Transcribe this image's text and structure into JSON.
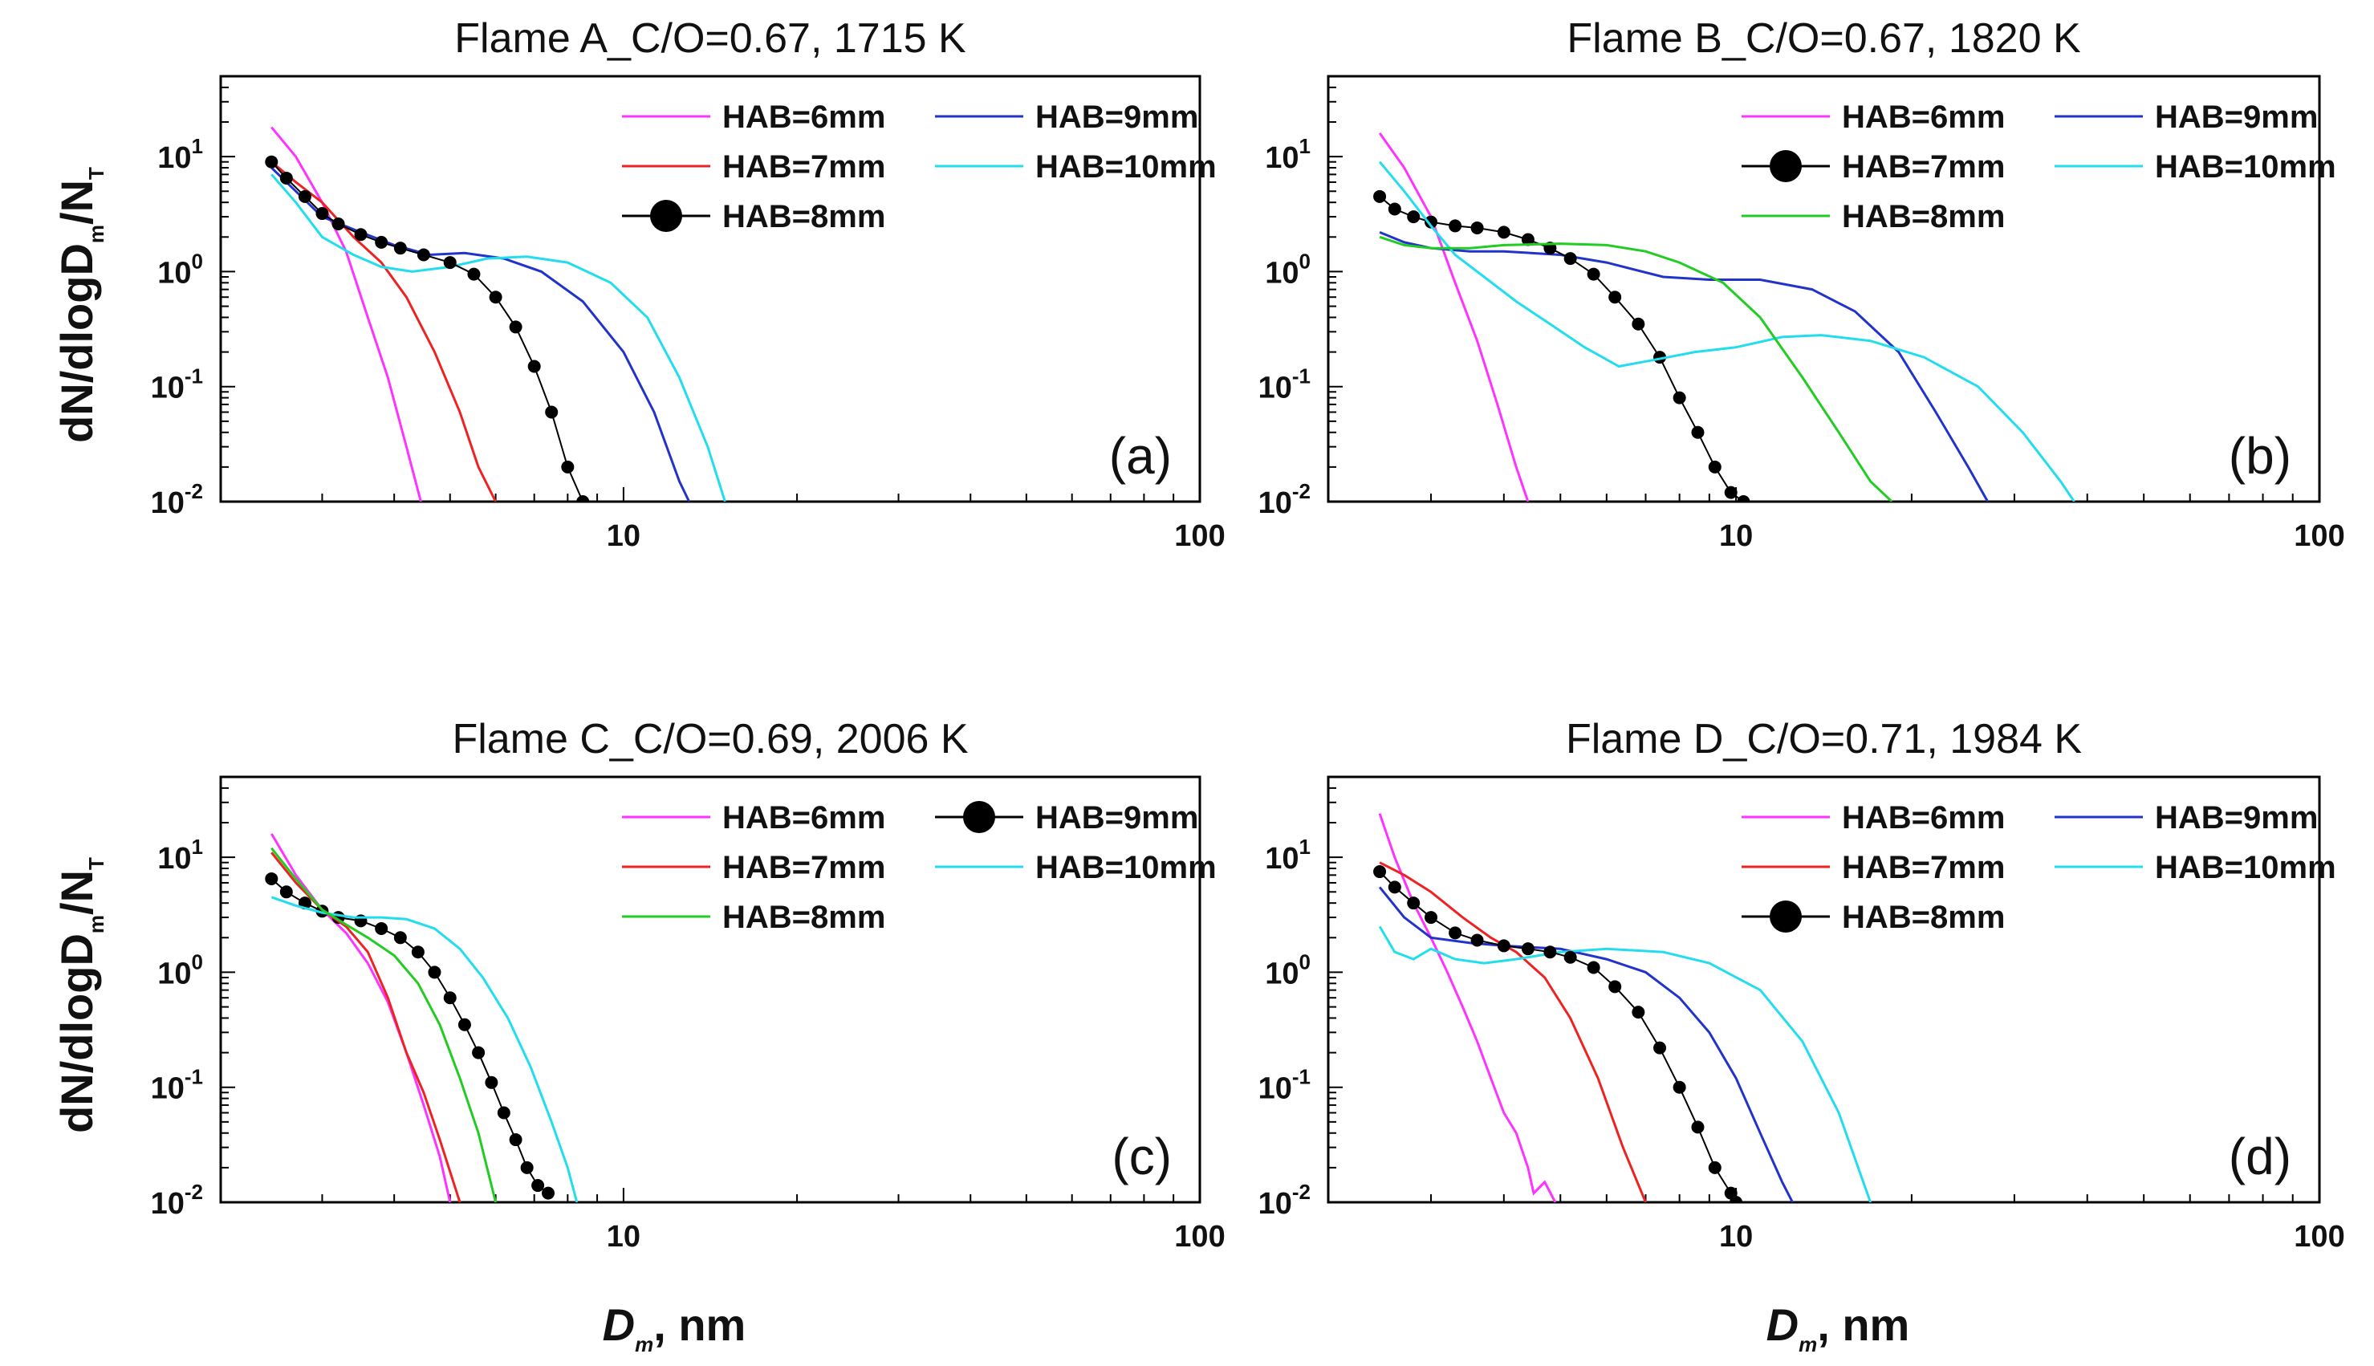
{
  "figure": {
    "y_axis_label": {
      "prefix": "dN/dlogD",
      "sub": "m",
      "mid": "/N",
      "sub2": "T"
    },
    "x_axis_label": {
      "main": "D",
      "sub": "m",
      "suffix": ", nm"
    }
  },
  "chart_data": [
    {
      "type": "line",
      "panel": "(a)",
      "title": "Flame A_C/O=0.67, 1715 K",
      "xlabel": "Dm, nm",
      "ylabel": "dN/dlogDm/NT",
      "xscale": "log",
      "yscale": "log",
      "xlim": [
        2,
        100
      ],
      "ylim": [
        0.01,
        50
      ],
      "x_ticks": [
        "10",
        "100"
      ],
      "y_ticks": [
        {
          "base": "10",
          "exp": "1"
        },
        {
          "base": "10",
          "exp": "0"
        },
        {
          "base": "10",
          "exp": "-1"
        },
        {
          "base": "10",
          "exp": "-2"
        }
      ],
      "legend": {
        "columns": 2,
        "placement": "top-right"
      },
      "series": [
        {
          "name": "HAB=6mm",
          "color": "#ff33ff",
          "style": "line",
          "x": [
            2.45,
            2.7,
            3.0,
            3.3,
            3.6,
            3.9,
            4.2,
            4.45
          ],
          "y": [
            18,
            10,
            4,
            1.5,
            0.4,
            0.12,
            0.03,
            0.01
          ]
        },
        {
          "name": "HAB=9mm",
          "color": "#2233cc",
          "style": "line",
          "x": [
            2.45,
            2.7,
            3.0,
            3.5,
            4.0,
            4.6,
            5.3,
            6.2,
            7.2,
            8.5,
            10,
            11.3,
            12.5,
            13.0
          ],
          "y": [
            8,
            5,
            3,
            2.2,
            1.7,
            1.4,
            1.45,
            1.3,
            1.0,
            0.55,
            0.2,
            0.06,
            0.015,
            0.01
          ]
        },
        {
          "name": "HAB=7mm",
          "color": "#ee2222",
          "style": "line",
          "x": [
            2.45,
            2.7,
            3.0,
            3.4,
            3.8,
            4.2,
            4.7,
            5.2,
            5.6,
            6.0
          ],
          "y": [
            9,
            6,
            4,
            2,
            1.2,
            0.6,
            0.2,
            0.06,
            0.02,
            0.01
          ]
        },
        {
          "name": "HAB=10mm",
          "color": "#22ddee",
          "style": "line",
          "x": [
            2.45,
            2.7,
            3.0,
            3.4,
            3.8,
            4.3,
            5.0,
            5.8,
            6.8,
            8.0,
            9.5,
            11.0,
            12.5,
            14.0,
            15.0
          ],
          "y": [
            7,
            4,
            2,
            1.4,
            1.1,
            1.0,
            1.1,
            1.3,
            1.35,
            1.2,
            0.8,
            0.4,
            0.12,
            0.03,
            0.01
          ]
        },
        {
          "name": "HAB=8mm",
          "color": "#000000",
          "style": "dots",
          "x": [
            2.45,
            2.6,
            2.8,
            3.0,
            3.2,
            3.5,
            3.8,
            4.1,
            4.5,
            5.0,
            5.5,
            6.0,
            6.5,
            7.0,
            7.5,
            8.0,
            8.5
          ],
          "y": [
            9,
            6.5,
            4.5,
            3.2,
            2.6,
            2.1,
            1.8,
            1.6,
            1.4,
            1.2,
            0.95,
            0.6,
            0.33,
            0.15,
            0.06,
            0.02,
            0.01
          ]
        }
      ]
    },
    {
      "type": "line",
      "panel": "(b)",
      "title": "Flame B_C/O=0.67, 1820 K",
      "xlabel": "Dm, nm",
      "ylabel": "dN/dlogDm/NT",
      "xscale": "log",
      "yscale": "log",
      "xlim": [
        2,
        100
      ],
      "ylim": [
        0.01,
        50
      ],
      "x_ticks": [
        "10",
        "100"
      ],
      "y_ticks": [
        {
          "base": "10",
          "exp": "1"
        },
        {
          "base": "10",
          "exp": "0"
        },
        {
          "base": "10",
          "exp": "-1"
        },
        {
          "base": "10",
          "exp": "-2"
        }
      ],
      "legend": {
        "columns": 2,
        "placement": "top-right"
      },
      "series": [
        {
          "name": "HAB=6mm",
          "color": "#ff33ff",
          "style": "line",
          "x": [
            2.45,
            2.7,
            3.0,
            3.3,
            3.6,
            3.9,
            4.2,
            4.4
          ],
          "y": [
            16,
            8,
            3,
            0.8,
            0.25,
            0.07,
            0.02,
            0.01
          ]
        },
        {
          "name": "HAB=9mm",
          "color": "#2233cc",
          "style": "line",
          "x": [
            2.45,
            2.7,
            3.0,
            3.5,
            4.0,
            5.0,
            6.0,
            7.5,
            9.0,
            11.0,
            13.5,
            16.0,
            19.0,
            22.0,
            25.0,
            27.0
          ],
          "y": [
            2.2,
            1.8,
            1.6,
            1.5,
            1.5,
            1.4,
            1.2,
            0.9,
            0.85,
            0.85,
            0.7,
            0.45,
            0.2,
            0.06,
            0.02,
            0.01
          ]
        },
        {
          "name": "HAB=7mm",
          "color": "#000000",
          "style": "dots",
          "x": [
            2.45,
            2.6,
            2.8,
            3.0,
            3.3,
            3.6,
            4.0,
            4.4,
            4.8,
            5.2,
            5.7,
            6.2,
            6.8,
            7.4,
            8.0,
            8.6,
            9.2,
            9.8,
            10.3
          ],
          "y": [
            4.5,
            3.5,
            3.0,
            2.7,
            2.5,
            2.4,
            2.2,
            1.9,
            1.6,
            1.3,
            0.95,
            0.6,
            0.35,
            0.18,
            0.08,
            0.04,
            0.02,
            0.012,
            0.01
          ]
        },
        {
          "name": "HAB=10mm",
          "color": "#22ddee",
          "style": "line",
          "x": [
            2.45,
            2.7,
            3.0,
            3.3,
            3.7,
            4.2,
            4.8,
            5.5,
            6.3,
            7.2,
            8.5,
            10.0,
            12.0,
            14.0,
            17.0,
            21.0,
            26.0,
            31.0,
            36.0,
            38.0
          ],
          "y": [
            9,
            5,
            2.5,
            1.4,
            0.9,
            0.55,
            0.35,
            0.22,
            0.15,
            0.17,
            0.2,
            0.22,
            0.27,
            0.28,
            0.25,
            0.18,
            0.1,
            0.04,
            0.015,
            0.01
          ]
        },
        {
          "name": "HAB=8mm",
          "color": "#22cc22",
          "style": "line",
          "x": [
            2.45,
            2.7,
            3.0,
            3.5,
            4.0,
            5.0,
            6.0,
            7.0,
            8.0,
            9.5,
            11.0,
            13.0,
            15.0,
            17.0,
            18.5
          ],
          "y": [
            2.0,
            1.7,
            1.6,
            1.6,
            1.7,
            1.75,
            1.7,
            1.5,
            1.2,
            0.8,
            0.4,
            0.12,
            0.04,
            0.015,
            0.01
          ]
        }
      ]
    },
    {
      "type": "line",
      "panel": "(c)",
      "title": "Flame C_C/O=0.69, 2006 K",
      "xlabel": "Dm, nm",
      "ylabel": "dN/dlogDm/NT",
      "xscale": "log",
      "yscale": "log",
      "xlim": [
        2,
        100
      ],
      "ylim": [
        0.01,
        50
      ],
      "x_ticks": [
        "10",
        "100"
      ],
      "y_ticks": [
        {
          "base": "10",
          "exp": "1"
        },
        {
          "base": "10",
          "exp": "0"
        },
        {
          "base": "10",
          "exp": "-1"
        },
        {
          "base": "10",
          "exp": "-2"
        }
      ],
      "legend": {
        "columns": 2,
        "placement": "top-right"
      },
      "series": [
        {
          "name": "HAB=6mm",
          "color": "#ff33ff",
          "style": "line",
          "x": [
            2.45,
            2.7,
            3.0,
            3.3,
            3.6,
            3.9,
            4.2,
            4.5,
            4.8,
            5.0
          ],
          "y": [
            16,
            7,
            3.5,
            2.2,
            1.2,
            0.55,
            0.2,
            0.07,
            0.025,
            0.01
          ]
        },
        {
          "name": "HAB=9mm",
          "color": "#000000",
          "style": "dots",
          "x": [
            2.45,
            2.6,
            2.8,
            3.0,
            3.2,
            3.5,
            3.8,
            4.1,
            4.4,
            4.7,
            5.0,
            5.3,
            5.6,
            5.9,
            6.2,
            6.5,
            6.8,
            7.1,
            7.4
          ],
          "y": [
            6.5,
            5,
            4,
            3.4,
            3.0,
            2.8,
            2.4,
            2.0,
            1.5,
            1.0,
            0.6,
            0.35,
            0.2,
            0.11,
            0.06,
            0.035,
            0.02,
            0.014,
            0.012
          ]
        },
        {
          "name": "HAB=7mm",
          "color": "#ee2222",
          "style": "line",
          "x": [
            2.45,
            2.7,
            3.0,
            3.3,
            3.6,
            3.9,
            4.2,
            4.5,
            4.8,
            5.2
          ],
          "y": [
            11,
            6,
            3.5,
            2.5,
            1.5,
            0.6,
            0.2,
            0.09,
            0.035,
            0.01
          ]
        },
        {
          "name": "HAB=10mm",
          "color": "#22ddee",
          "style": "line",
          "x": [
            2.45,
            2.7,
            3.0,
            3.4,
            3.8,
            4.2,
            4.7,
            5.2,
            5.7,
            6.3,
            6.9,
            7.5,
            8.0,
            8.3
          ],
          "y": [
            4.5,
            3.8,
            3.3,
            3.0,
            3.0,
            2.9,
            2.4,
            1.6,
            0.9,
            0.4,
            0.15,
            0.05,
            0.02,
            0.01
          ]
        },
        {
          "name": "HAB=8mm",
          "color": "#22cc22",
          "style": "line",
          "x": [
            2.45,
            2.7,
            3.0,
            3.3,
            3.6,
            4.0,
            4.4,
            4.8,
            5.2,
            5.6,
            6.0
          ],
          "y": [
            12,
            6.5,
            3.5,
            2.6,
            2.0,
            1.4,
            0.8,
            0.35,
            0.12,
            0.04,
            0.01
          ]
        }
      ]
    },
    {
      "type": "line",
      "panel": "(d)",
      "title": "Flame D_C/O=0.71, 1984 K",
      "xlabel": "Dm, nm",
      "ylabel": "dN/dlogDm/NT",
      "xscale": "log",
      "yscale": "log",
      "xlim": [
        2,
        100
      ],
      "ylim": [
        0.01,
        50
      ],
      "x_ticks": [
        "10",
        "100"
      ],
      "y_ticks": [
        {
          "base": "10",
          "exp": "1"
        },
        {
          "base": "10",
          "exp": "0"
        },
        {
          "base": "10",
          "exp": "-1"
        },
        {
          "base": "10",
          "exp": "-2"
        }
      ],
      "legend": {
        "columns": 2,
        "placement": "top-right"
      },
      "series": [
        {
          "name": "HAB=6mm",
          "color": "#ff33ff",
          "style": "line",
          "x": [
            2.45,
            2.6,
            2.8,
            3.0,
            3.2,
            3.4,
            3.6,
            3.8,
            4.0,
            4.2,
            4.4,
            4.5,
            4.7,
            4.9
          ],
          "y": [
            24,
            10,
            4,
            2,
            1.0,
            0.5,
            0.25,
            0.12,
            0.06,
            0.04,
            0.02,
            0.012,
            0.015,
            0.01
          ]
        },
        {
          "name": "HAB=9mm",
          "color": "#2233cc",
          "style": "line",
          "x": [
            2.45,
            2.7,
            3.0,
            3.5,
            4.0,
            5.0,
            6.0,
            7.0,
            8.0,
            9.0,
            10.0,
            11.0,
            12.0,
            12.5
          ],
          "y": [
            5.5,
            3.0,
            2.0,
            1.8,
            1.7,
            1.6,
            1.3,
            1.0,
            0.6,
            0.3,
            0.12,
            0.04,
            0.015,
            0.01
          ]
        },
        {
          "name": "HAB=7mm",
          "color": "#ee2222",
          "style": "line",
          "x": [
            2.45,
            2.7,
            3.0,
            3.4,
            3.8,
            4.2,
            4.7,
            5.2,
            5.8,
            6.4,
            7.0
          ],
          "y": [
            9,
            7,
            5,
            3,
            2.0,
            1.5,
            0.9,
            0.4,
            0.12,
            0.03,
            0.01
          ]
        },
        {
          "name": "HAB=10mm",
          "color": "#22ddee",
          "style": "line",
          "x": [
            2.45,
            2.6,
            2.8,
            3.0,
            3.3,
            3.7,
            4.2,
            5.0,
            6.0,
            7.5,
            9.0,
            11.0,
            13.0,
            15.0,
            17.0
          ],
          "y": [
            2.5,
            1.5,
            1.3,
            1.6,
            1.3,
            1.2,
            1.3,
            1.5,
            1.6,
            1.5,
            1.2,
            0.7,
            0.25,
            0.06,
            0.01
          ]
        },
        {
          "name": "HAB=8mm",
          "color": "#000000",
          "style": "dots",
          "x": [
            2.45,
            2.6,
            2.8,
            3.0,
            3.3,
            3.6,
            4.0,
            4.4,
            4.8,
            5.2,
            5.7,
            6.2,
            6.8,
            7.4,
            8.0,
            8.6,
            9.2,
            9.8,
            10.0
          ],
          "y": [
            7.5,
            5.5,
            4.0,
            3.0,
            2.2,
            1.9,
            1.7,
            1.6,
            1.5,
            1.35,
            1.1,
            0.75,
            0.45,
            0.22,
            0.1,
            0.045,
            0.02,
            0.012,
            0.01
          ]
        }
      ]
    }
  ]
}
